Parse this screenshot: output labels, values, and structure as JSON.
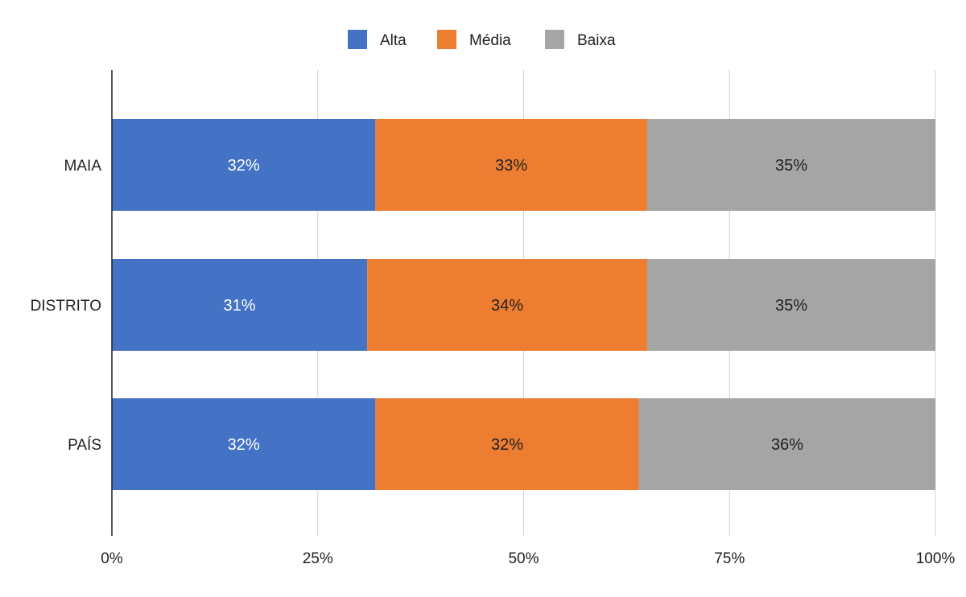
{
  "chart_data": {
    "type": "bar",
    "orientation": "horizontal",
    "stacked": "percent",
    "categories": [
      "MAIA",
      "DISTRITO",
      "PAÍS"
    ],
    "series": [
      {
        "name": "Alta",
        "color": "#4472C4",
        "label_color": "#FFFFFF",
        "values": [
          32,
          31,
          32
        ],
        "labels": [
          "32%",
          "31%",
          "32%"
        ]
      },
      {
        "name": "Média",
        "color": "#ED7D31",
        "label_color": "#222222",
        "values": [
          33,
          34,
          32
        ],
        "labels": [
          "33%",
          "34%",
          "32%"
        ]
      },
      {
        "name": "Baixa",
        "color": "#A5A5A5",
        "label_color": "#222222",
        "values": [
          35,
          35,
          36
        ],
        "labels": [
          "35%",
          "35%",
          "36%"
        ]
      }
    ],
    "xlim": [
      0,
      100
    ],
    "x_ticks": [
      0,
      25,
      50,
      75,
      100
    ],
    "x_tick_labels": [
      "0%",
      "25%",
      "50%",
      "75%",
      "100%"
    ],
    "grid": "vertical",
    "legend": "top-center"
  }
}
